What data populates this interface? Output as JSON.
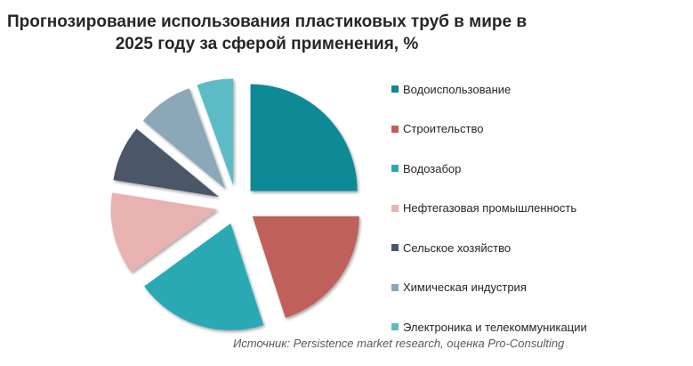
{
  "chart_data": {
    "type": "pie",
    "title_lines": [
      "Прогнозирование использования пластиковых труб в мире в",
      "2025 году за сферой применения, %"
    ],
    "categories": [
      "Водоиспользование",
      "Строительство",
      "Водозабор",
      "Нефтегазовая промышленность",
      "Сельское хозяйство",
      "Химическая индустрия",
      "Электроника и телекоммуникации"
    ],
    "values": [
      25,
      20,
      20,
      12.5,
      8.5,
      8.5,
      5.5
    ],
    "colors": [
      "#0e8a96",
      "#c0605a",
      "#2aa9b5",
      "#e8b2b0",
      "#4c5669",
      "#8aa8b8",
      "#5bbcc6"
    ],
    "exploded": true,
    "legend_position": "right"
  },
  "source": "Источник: Persistence market research, оценка Pro-Consulting"
}
